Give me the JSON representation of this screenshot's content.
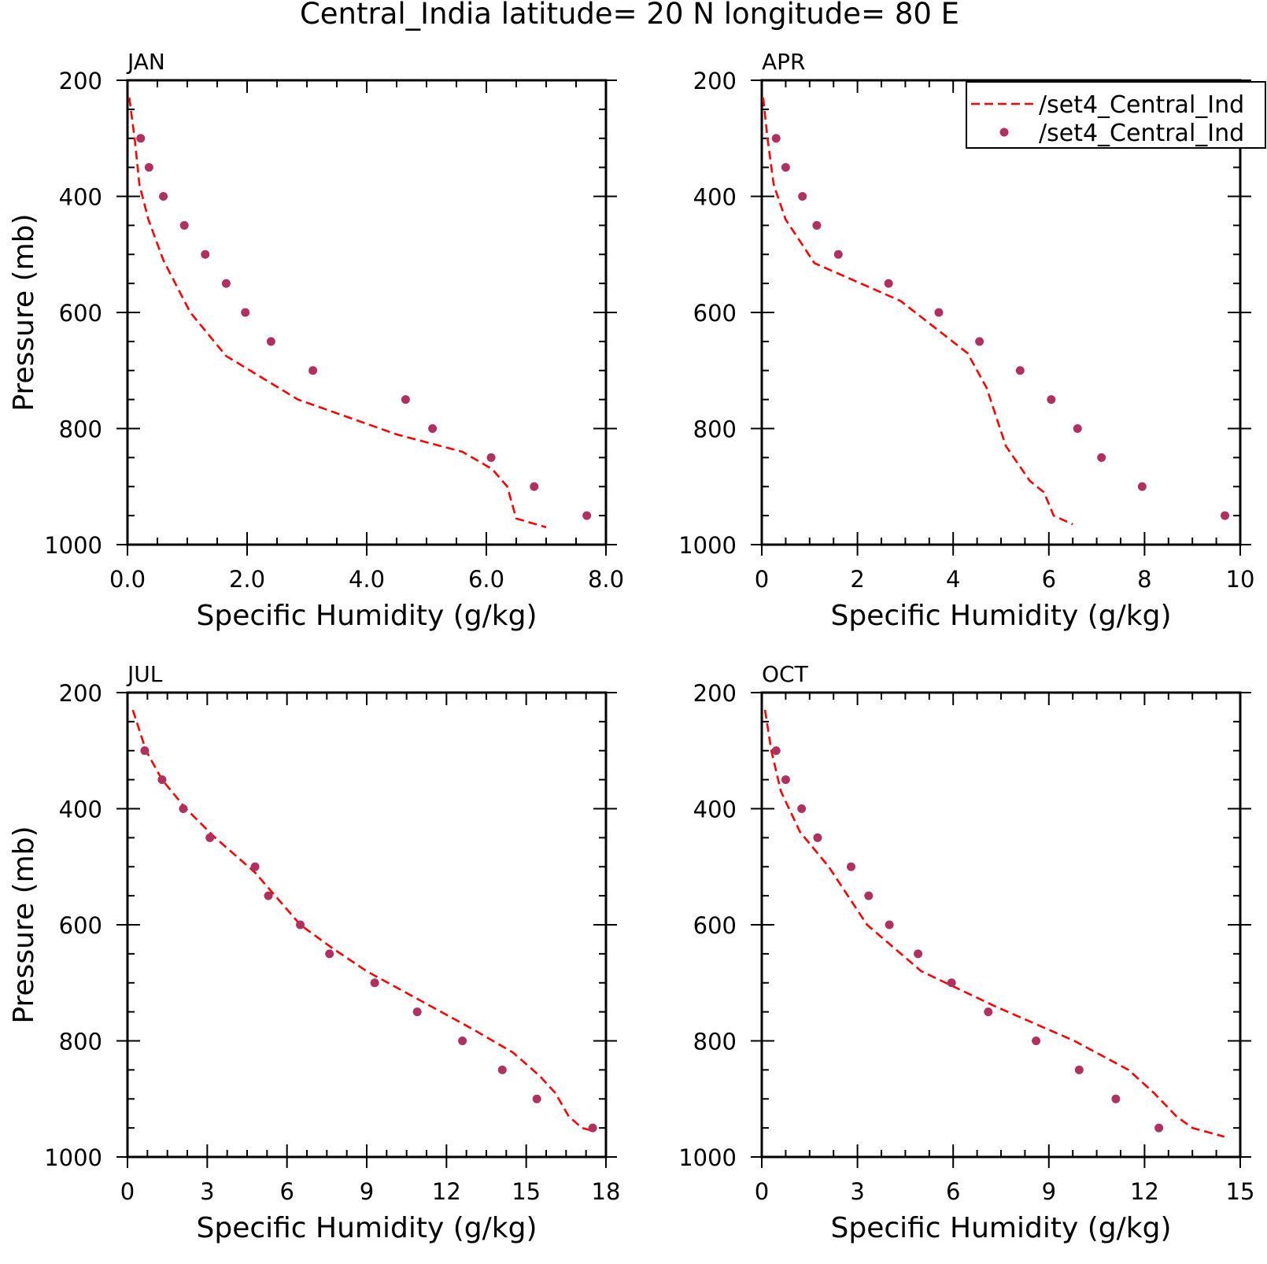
{
  "title": "Central_India  latitude= 20 N longitude= 80 E",
  "legend": {
    "entries": [
      {
        "label": "/set4_Central_Ind",
        "style": "dashed-line",
        "color": "#ff0000"
      },
      {
        "label": "/set4_Central_Ind",
        "style": "dot",
        "color": "#b03060"
      }
    ]
  },
  "colors": {
    "line": "#ff0000",
    "dots": "#b03060",
    "axes": "#000000"
  },
  "chart_data": [
    {
      "type": "line",
      "panel_label": "JAN",
      "xlabel": "Specific Humidity (g/kg)",
      "ylabel": "Pressure (mb)",
      "xlim": [
        0,
        8
      ],
      "ylim": [
        1000,
        200
      ],
      "y_inverted": true,
      "xticks": [
        0,
        2,
        4,
        6,
        8
      ],
      "xtick_labels": [
        "0.0",
        "2.0",
        "4.0",
        "6.0",
        "8.0"
      ],
      "yticks": [
        200,
        400,
        600,
        800,
        1000
      ],
      "ytick_labels": [
        "200",
        "400",
        "600",
        "800",
        "1000"
      ],
      "series": [
        {
          "style": "line",
          "x": [
            0.03,
            0.12,
            0.2,
            0.35,
            0.6,
            1.05,
            1.65,
            2.85,
            4.5,
            5.6,
            6.1,
            6.35,
            6.5,
            7.0
          ],
          "y": [
            230,
            300,
            380,
            440,
            510,
            600,
            675,
            750,
            810,
            840,
            870,
            900,
            955,
            970
          ]
        },
        {
          "style": "points",
          "x": [
            0.22,
            0.36,
            0.6,
            0.95,
            1.3,
            1.65,
            1.97,
            2.4,
            3.1,
            4.65,
            5.1,
            6.08,
            6.8,
            7.68
          ],
          "y": [
            300,
            350,
            400,
            450,
            500,
            550,
            600,
            650,
            700,
            750,
            800,
            850,
            900,
            950
          ]
        }
      ]
    },
    {
      "type": "line",
      "panel_label": "APR",
      "xlabel": "Specific Humidity (g/kg)",
      "ylabel": "",
      "xlim": [
        0,
        10
      ],
      "ylim": [
        1000,
        200
      ],
      "y_inverted": true,
      "xticks": [
        0,
        2,
        4,
        6,
        8,
        10
      ],
      "xtick_labels": [
        "0",
        "2",
        "4",
        "6",
        "8",
        "10"
      ],
      "series": [
        {
          "style": "line",
          "x": [
            0.03,
            0.12,
            0.25,
            0.5,
            1.1,
            2.9,
            4.3,
            4.7,
            5.1,
            5.6,
            5.9,
            6.1,
            6.5
          ],
          "y": [
            230,
            300,
            380,
            440,
            515,
            580,
            670,
            730,
            830,
            890,
            910,
            950,
            965
          ]
        },
        {
          "style": "points",
          "x": [
            0.3,
            0.5,
            0.85,
            1.15,
            1.6,
            2.65,
            3.7,
            4.55,
            5.4,
            6.05,
            6.6,
            7.1,
            7.95,
            9.68
          ],
          "y": [
            300,
            350,
            400,
            450,
            500,
            550,
            600,
            650,
            700,
            750,
            800,
            850,
            900,
            950
          ]
        }
      ]
    },
    {
      "type": "line",
      "panel_label": "JUL",
      "xlabel": "Specific Humidity (g/kg)",
      "ylabel": "Pressure (mb)",
      "xlim": [
        0,
        18
      ],
      "ylim": [
        1000,
        200
      ],
      "y_inverted": true,
      "xticks": [
        0,
        3,
        6,
        9,
        12,
        15,
        18
      ],
      "xtick_labels": [
        "0",
        "3",
        "6",
        "9",
        "12",
        "15",
        "18"
      ],
      "series": [
        {
          "style": "line",
          "x": [
            0.2,
            0.7,
            1.3,
            2.2,
            3.3,
            4.8,
            6.5,
            7.7,
            9,
            11,
            13,
            14.5,
            15.5,
            16.1,
            16.6,
            17.1,
            17.5
          ],
          "y": [
            230,
            300,
            350,
            400,
            450,
            510,
            600,
            640,
            680,
            730,
            780,
            820,
            860,
            890,
            930,
            950,
            955
          ]
        },
        {
          "style": "points",
          "x": [
            0.65,
            1.3,
            2.1,
            3.1,
            4.8,
            5.3,
            6.5,
            7.6,
            9.3,
            10.9,
            12.6,
            14.1,
            15.4,
            17.5
          ],
          "y": [
            300,
            350,
            400,
            450,
            500,
            550,
            600,
            650,
            700,
            750,
            800,
            850,
            900,
            950
          ]
        }
      ]
    },
    {
      "type": "line",
      "panel_label": "OCT",
      "xlabel": "Specific Humidity (g/kg)",
      "ylabel": "",
      "xlim": [
        0,
        15
      ],
      "ylim": [
        1000,
        200
      ],
      "y_inverted": true,
      "xticks": [
        0,
        3,
        6,
        9,
        12,
        15
      ],
      "xtick_labels": [
        "0",
        "3",
        "6",
        "9",
        "12",
        "15"
      ],
      "series": [
        {
          "style": "line",
          "x": [
            0.1,
            0.3,
            0.6,
            1.2,
            2.1,
            3.3,
            5,
            7.3,
            9.8,
            11.5,
            12.3,
            13,
            13.5,
            14.5
          ],
          "y": [
            230,
            300,
            370,
            440,
            500,
            600,
            680,
            740,
            800,
            850,
            890,
            930,
            950,
            965
          ]
        },
        {
          "style": "points",
          "x": [
            0.45,
            0.75,
            1.25,
            1.75,
            2.8,
            3.35,
            4.0,
            4.9,
            5.95,
            7.1,
            8.6,
            9.95,
            11.1,
            12.45
          ],
          "y": [
            300,
            350,
            400,
            450,
            500,
            550,
            600,
            650,
            700,
            750,
            800,
            850,
            900,
            950
          ]
        }
      ]
    }
  ]
}
